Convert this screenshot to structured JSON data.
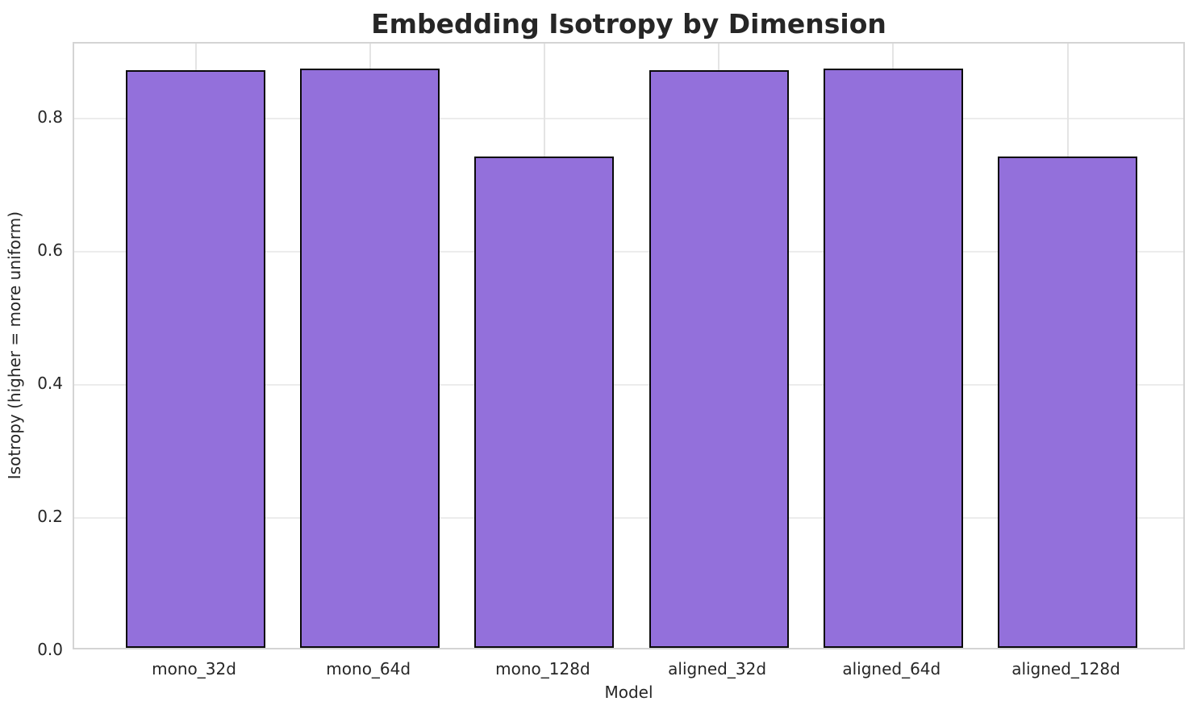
{
  "chart_data": {
    "type": "bar",
    "title": "Embedding Isotropy by Dimension",
    "xlabel": "Model",
    "ylabel": "Isotropy (higher = more uniform)",
    "categories": [
      "mono_32d",
      "mono_64d",
      "mono_128d",
      "aligned_32d",
      "aligned_64d",
      "aligned_128d"
    ],
    "values": [
      0.868,
      0.87,
      0.738,
      0.868,
      0.87,
      0.738
    ],
    "yticks": [
      0.0,
      0.2,
      0.4,
      0.6,
      0.8
    ],
    "ytick_labels": [
      "0.0",
      "0.2",
      "0.4",
      "0.6",
      "0.8"
    ],
    "ylim": [
      0,
      0.913
    ],
    "grid": true,
    "legend": null,
    "bar_color": "#9370db",
    "bar_edge_color": "#0a0a0a",
    "grid_color": "#ececec",
    "spine_color": "#d4d4d4",
    "text_color": "#262626",
    "background_color": "#ffffff"
  }
}
